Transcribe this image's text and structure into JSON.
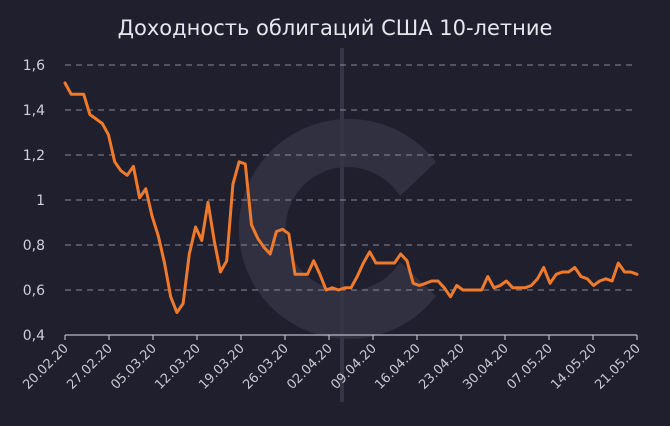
{
  "chart_data": {
    "type": "line",
    "title": "Доходность облигаций США 10-летние",
    "xlabel": "",
    "ylabel": "",
    "ylim": [
      0.4,
      1.6
    ],
    "yticks": [
      "0,4",
      "0,6",
      "0,8",
      "1",
      "1,2",
      "1,4",
      "1,6"
    ],
    "grid": true,
    "xtick_labels": [
      "20.02.20",
      "27.02.20",
      "05.03.20",
      "12.03.20",
      "19.03.20",
      "26.03.20",
      "02.04.20",
      "09.04.20",
      "16.04.20",
      "23.04.20",
      "30.04.20",
      "07.05.20",
      "14.05.20",
      "21.05.20"
    ],
    "series": [
      {
        "color": "#f07a2c",
        "values": [
          1.52,
          1.47,
          1.47,
          1.47,
          1.38,
          1.36,
          1.34,
          1.29,
          1.17,
          1.13,
          1.11,
          1.15,
          1.01,
          1.05,
          0.93,
          0.84,
          0.72,
          0.57,
          0.5,
          0.54,
          0.76,
          0.88,
          0.82,
          0.99,
          0.82,
          0.68,
          0.73,
          1.07,
          1.17,
          1.16,
          0.89,
          0.83,
          0.79,
          0.76,
          0.86,
          0.87,
          0.85,
          0.67,
          0.67,
          0.67,
          0.73,
          0.67,
          0.6,
          0.61,
          0.6,
          0.61,
          0.61,
          0.66,
          0.72,
          0.77,
          0.72,
          0.72,
          0.72,
          0.72,
          0.76,
          0.73,
          0.63,
          0.62,
          0.63,
          0.64,
          0.64,
          0.61,
          0.57,
          0.62,
          0.6,
          0.6,
          0.6,
          0.6,
          0.66,
          0.61,
          0.62,
          0.64,
          0.61,
          0.61,
          0.61,
          0.62,
          0.65,
          0.7,
          0.63,
          0.67,
          0.68,
          0.68,
          0.7,
          0.66,
          0.65,
          0.62,
          0.64,
          0.65,
          0.64,
          0.72,
          0.68,
          0.68,
          0.67
        ]
      }
    ]
  }
}
